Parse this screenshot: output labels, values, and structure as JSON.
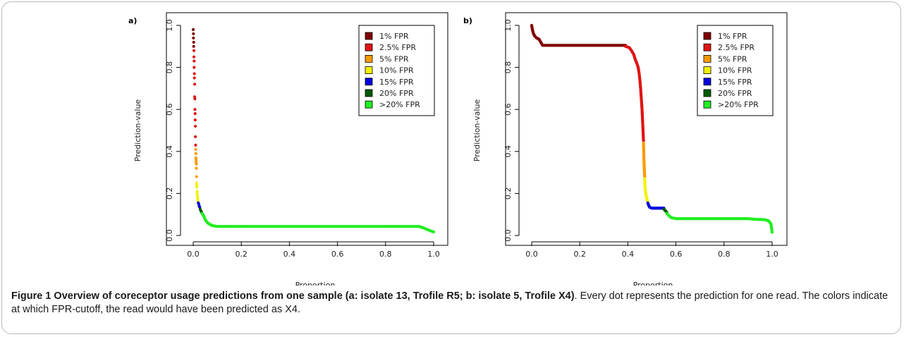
{
  "colors": {
    "fpr_1": "#800000",
    "fpr_2_5": "#e01414",
    "fpr_5": "#ff9a00",
    "fpr_10": "#f2f200",
    "fpr_15": "#0000e0",
    "fpr_20": "#005a00",
    "fpr_gt20": "#22ee22"
  },
  "chart_data": [
    {
      "type": "scatter",
      "panel_label": "a)",
      "xlabel": "Proportion",
      "ylabel": "Prediction-value",
      "xlim": [
        0,
        1
      ],
      "ylim": [
        0,
        1
      ],
      "x_ticks": [
        "0.0",
        "0.2",
        "0.4",
        "0.6",
        "0.8",
        "1.0"
      ],
      "y_ticks": [
        "0.0",
        "0.2",
        "0.4",
        "0.6",
        "0.8",
        "1.0"
      ],
      "grid": false,
      "legend_position": "top-right",
      "legend": [
        {
          "label": "1% FPR",
          "color": "#800000"
        },
        {
          "label": "2.5% FPR",
          "color": "#e01414"
        },
        {
          "label": "5% FPR",
          "color": "#ff9a00"
        },
        {
          "label": "10% FPR",
          "color": "#f2f200"
        },
        {
          "label": "15% FPR",
          "color": "#0000e0"
        },
        {
          "label": "20% FPR",
          "color": "#005a00"
        },
        {
          "label": ">20% FPR",
          "color": "#22ee22"
        }
      ],
      "series": [
        {
          "color": "#800000",
          "points": [
            [
              0.0,
              0.98
            ],
            [
              0.001,
              0.96
            ],
            [
              0.001,
              0.94
            ],
            [
              0.002,
              0.92
            ],
            [
              0.002,
              0.9
            ]
          ]
        },
        {
          "color": "#e01414",
          "points": [
            [
              0.003,
              0.88
            ],
            [
              0.003,
              0.85
            ],
            [
              0.004,
              0.83
            ],
            [
              0.004,
              0.8
            ],
            [
              0.005,
              0.77
            ],
            [
              0.005,
              0.75
            ],
            [
              0.006,
              0.72
            ],
            [
              0.006,
              0.66
            ],
            [
              0.007,
              0.65
            ],
            [
              0.007,
              0.6
            ],
            [
              0.008,
              0.58
            ],
            [
              0.008,
              0.55
            ],
            [
              0.009,
              0.52
            ],
            [
              0.009,
              0.47
            ],
            [
              0.01,
              0.43
            ]
          ]
        },
        {
          "color": "#ff9a00",
          "points": [
            [
              0.01,
              0.41
            ],
            [
              0.011,
              0.39
            ],
            [
              0.011,
              0.37
            ],
            [
              0.012,
              0.36
            ],
            [
              0.012,
              0.35
            ],
            [
              0.013,
              0.34
            ],
            [
              0.013,
              0.32
            ],
            [
              0.014,
              0.28
            ]
          ]
        },
        {
          "color": "#f2f200",
          "points": [
            [
              0.014,
              0.25
            ],
            [
              0.015,
              0.24
            ],
            [
              0.015,
              0.23
            ],
            [
              0.016,
              0.21
            ],
            [
              0.016,
              0.2
            ],
            [
              0.017,
              0.19
            ],
            [
              0.018,
              0.18
            ],
            [
              0.019,
              0.17
            ],
            [
              0.02,
              0.16
            ]
          ]
        },
        {
          "color": "#0000e0",
          "points": [
            [
              0.021,
              0.155
            ],
            [
              0.023,
              0.15
            ],
            [
              0.025,
              0.14
            ],
            [
              0.027,
              0.135
            ]
          ]
        },
        {
          "color": "#005a00",
          "points": [
            [
              0.029,
              0.125
            ],
            [
              0.031,
              0.12
            ],
            [
              0.033,
              0.115
            ],
            [
              0.035,
              0.11
            ]
          ]
        },
        {
          "color": "#22ee22",
          "curve": [
            [
              0.037,
              0.105
            ],
            [
              0.045,
              0.09
            ],
            [
              0.05,
              0.075
            ],
            [
              0.06,
              0.06
            ],
            [
              0.07,
              0.052
            ],
            [
              0.08,
              0.047
            ],
            [
              0.1,
              0.043
            ],
            [
              0.3,
              0.043
            ],
            [
              0.6,
              0.043
            ],
            [
              0.94,
              0.043
            ],
            [
              0.96,
              0.035
            ],
            [
              0.98,
              0.025
            ],
            [
              1.0,
              0.017
            ]
          ]
        }
      ]
    },
    {
      "type": "scatter",
      "panel_label": "b)",
      "xlabel": "Proportion",
      "ylabel": "Prediction-value",
      "xlim": [
        0,
        1
      ],
      "ylim": [
        0,
        1
      ],
      "x_ticks": [
        "0.0",
        "0.2",
        "0.4",
        "0.6",
        "0.8",
        "1.0"
      ],
      "y_ticks": [
        "0.0",
        "0.2",
        "0.4",
        "0.6",
        "0.8",
        "1.0"
      ],
      "grid": false,
      "legend_position": "top-right",
      "legend": [
        {
          "label": "1% FPR",
          "color": "#800000"
        },
        {
          "label": "2.5% FPR",
          "color": "#e01414"
        },
        {
          "label": "5% FPR",
          "color": "#ff9a00"
        },
        {
          "label": "10% FPR",
          "color": "#f2f200"
        },
        {
          "label": "15% FPR",
          "color": "#0000e0"
        },
        {
          "label": "20% FPR",
          "color": "#005a00"
        },
        {
          "label": ">20% FPR",
          "color": "#22ee22"
        }
      ],
      "series": [
        {
          "color": "#800000",
          "curve": [
            [
              0.0,
              1.0
            ],
            [
              0.003,
              0.98
            ],
            [
              0.006,
              0.965
            ],
            [
              0.012,
              0.95
            ],
            [
              0.02,
              0.94
            ],
            [
              0.03,
              0.935
            ],
            [
              0.038,
              0.92
            ],
            [
              0.045,
              0.905
            ],
            [
              0.1,
              0.905
            ],
            [
              0.2,
              0.905
            ],
            [
              0.3,
              0.905
            ],
            [
              0.39,
              0.905
            ]
          ]
        },
        {
          "color": "#e01414",
          "curve": [
            [
              0.39,
              0.9
            ],
            [
              0.405,
              0.895
            ],
            [
              0.415,
              0.88
            ],
            [
              0.425,
              0.86
            ],
            [
              0.43,
              0.84
            ],
            [
              0.437,
              0.82
            ],
            [
              0.443,
              0.8
            ],
            [
              0.447,
              0.77
            ],
            [
              0.45,
              0.74
            ],
            [
              0.453,
              0.7
            ],
            [
              0.456,
              0.65
            ],
            [
              0.459,
              0.6
            ],
            [
              0.461,
              0.55
            ],
            [
              0.463,
              0.5
            ],
            [
              0.465,
              0.45
            ]
          ]
        },
        {
          "color": "#ff9a00",
          "curve": [
            [
              0.465,
              0.44
            ],
            [
              0.466,
              0.4
            ],
            [
              0.467,
              0.36
            ],
            [
              0.468,
              0.33
            ],
            [
              0.469,
              0.3
            ],
            [
              0.47,
              0.28
            ]
          ]
        },
        {
          "color": "#f2f200",
          "curve": [
            [
              0.47,
              0.27
            ],
            [
              0.471,
              0.24
            ],
            [
              0.473,
              0.21
            ],
            [
              0.476,
              0.19
            ],
            [
              0.48,
              0.17
            ],
            [
              0.483,
              0.16
            ]
          ]
        },
        {
          "color": "#0000e0",
          "curve": [
            [
              0.483,
              0.155
            ],
            [
              0.486,
              0.145
            ],
            [
              0.49,
              0.135
            ],
            [
              0.5,
              0.13
            ],
            [
              0.52,
              0.13
            ],
            [
              0.54,
              0.13
            ],
            [
              0.55,
              0.13
            ]
          ]
        },
        {
          "color": "#005a00",
          "curve": [
            [
              0.55,
              0.125
            ],
            [
              0.556,
              0.118
            ],
            [
              0.562,
              0.11
            ]
          ]
        },
        {
          "color": "#22ee22",
          "curve": [
            [
              0.562,
              0.105
            ],
            [
              0.57,
              0.095
            ],
            [
              0.58,
              0.085
            ],
            [
              0.6,
              0.08
            ],
            [
              0.7,
              0.08
            ],
            [
              0.8,
              0.08
            ],
            [
              0.9,
              0.08
            ],
            [
              0.93,
              0.077
            ],
            [
              0.97,
              0.075
            ],
            [
              0.985,
              0.07
            ],
            [
              0.995,
              0.055
            ],
            [
              1.0,
              0.015
            ]
          ]
        }
      ]
    }
  ],
  "caption": {
    "title": "Figure 1 Overview of coreceptor usage predictions from one sample (a: isolate 13, Trofile R5; b: isolate 5, Trofile X4)",
    "text": ". Every dot represents the prediction for one read. The colors indicate at which FPR-cutoff, the read would have been predicted as X4."
  }
}
